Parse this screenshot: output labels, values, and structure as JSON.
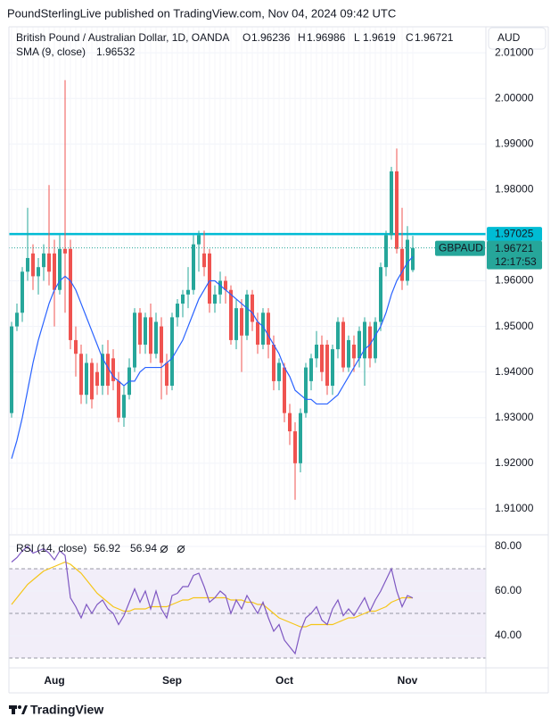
{
  "header": {
    "publisher_line": "PoundSterlingLive published on TradingView.com, Nov 04, 2024 09:42 UTC"
  },
  "footer": {
    "brand": "TradingView"
  },
  "chart_data": [
    {
      "type": "candlestick",
      "title": "British Pound / Australian Dollar, 1D, OANDA",
      "currency": "AUD",
      "symbol": "GBPAUD",
      "legend_labels": [
        "O",
        "H",
        "L",
        "C"
      ],
      "categories": [
        null,
        null,
        null,
        null,
        null,
        null,
        null,
        null,
        "Aug",
        null,
        null,
        null,
        null,
        null,
        null,
        null,
        null,
        null,
        null,
        null,
        null,
        null,
        null,
        null,
        null,
        null,
        null,
        null,
        null,
        null,
        "Sep",
        null,
        null,
        null,
        null,
        null,
        null,
        null,
        null,
        null,
        null,
        null,
        null,
        null,
        null,
        null,
        null,
        null,
        null,
        null,
        null,
        "Oct",
        null,
        null,
        null,
        null,
        null,
        null,
        null,
        null,
        null,
        null,
        null,
        null,
        null,
        null,
        null,
        null,
        null,
        null,
        null,
        null,
        null,
        null,
        "Nov",
        null
      ],
      "open": [
        1.931,
        1.95,
        1.953,
        1.962,
        1.966,
        1.961,
        1.963,
        1.966,
        1.966,
        1.958,
        1.967,
        1.967,
        1.947,
        1.944,
        1.935,
        1.942,
        1.94,
        1.937,
        1.944,
        1.943,
        1.938,
        1.93,
        1.935,
        1.941,
        1.953,
        1.946,
        1.952,
        1.944,
        1.95,
        1.942,
        1.937,
        1.952,
        1.955,
        1.957,
        1.958,
        1.968,
        1.966,
        1.966,
        1.955,
        1.957,
        1.96,
        1.958,
        1.947,
        1.954,
        1.948,
        1.957,
        1.951,
        1.946,
        1.953,
        1.946,
        1.938,
        1.941,
        1.931,
        1.927,
        1.92,
        1.931,
        1.938,
        1.943,
        1.946,
        1.946,
        1.937,
        1.945,
        1.951,
        1.941,
        1.946,
        1.943,
        1.943,
        1.95,
        1.943,
        1.951,
        1.963,
        1.97,
        1.984,
        1.967,
        1.96,
        1.96236
      ],
      "high": [
        1.951,
        1.955,
        1.963,
        1.976,
        1.968,
        1.965,
        1.968,
        1.981,
        1.969,
        1.97,
        2.004,
        1.969,
        1.95,
        1.946,
        1.944,
        1.943,
        1.942,
        1.946,
        1.947,
        1.945,
        1.94,
        1.937,
        1.943,
        1.954,
        1.954,
        1.953,
        1.955,
        1.953,
        1.952,
        1.944,
        1.953,
        1.956,
        1.958,
        1.963,
        1.97,
        1.971,
        1.971,
        1.967,
        1.959,
        1.962,
        1.961,
        1.959,
        1.956,
        1.956,
        1.958,
        1.958,
        1.953,
        1.954,
        1.954,
        1.948,
        1.943,
        1.942,
        1.933,
        1.929,
        1.932,
        1.942,
        1.944,
        1.949,
        1.948,
        1.947,
        1.946,
        1.952,
        1.952,
        1.948,
        1.948,
        1.95,
        1.952,
        1.951,
        1.952,
        1.964,
        1.971,
        1.985,
        1.989,
        1.976,
        1.972,
        1.96986
      ],
      "low": [
        1.93,
        1.949,
        1.951,
        1.96,
        1.958,
        1.957,
        1.96,
        1.959,
        1.95,
        1.957,
        1.953,
        1.945,
        1.939,
        1.933,
        1.933,
        1.932,
        1.935,
        1.935,
        1.935,
        1.936,
        1.929,
        1.928,
        1.934,
        1.94,
        1.944,
        1.944,
        1.942,
        1.943,
        1.934,
        1.935,
        1.936,
        1.95,
        1.952,
        1.954,
        1.957,
        1.962,
        1.961,
        1.953,
        1.953,
        1.955,
        1.955,
        1.946,
        1.945,
        1.94,
        1.947,
        1.949,
        1.944,
        1.945,
        1.943,
        1.936,
        1.936,
        1.929,
        1.924,
        1.912,
        1.918,
        1.93,
        1.936,
        1.941,
        1.938,
        1.935,
        1.935,
        1.943,
        1.94,
        1.94,
        1.94,
        1.941,
        1.937,
        1.941,
        1.942,
        1.949,
        1.961,
        1.969,
        1.966,
        1.958,
        1.959,
        1.9619
      ],
      "close": [
        1.95,
        1.953,
        1.962,
        1.965,
        1.961,
        1.963,
        1.966,
        1.962,
        1.958,
        1.967,
        1.966,
        1.947,
        1.944,
        1.935,
        1.942,
        1.934,
        1.937,
        1.944,
        1.937,
        1.938,
        1.93,
        1.935,
        1.941,
        1.953,
        1.946,
        1.952,
        1.944,
        1.951,
        1.942,
        1.937,
        1.952,
        1.955,
        1.957,
        1.958,
        1.968,
        1.97,
        1.963,
        1.955,
        1.957,
        1.96,
        1.958,
        1.947,
        1.954,
        1.948,
        1.957,
        1.951,
        1.946,
        1.953,
        1.946,
        1.938,
        1.942,
        1.931,
        1.927,
        1.92,
        1.931,
        1.941,
        1.943,
        1.946,
        1.94,
        1.937,
        1.945,
        1.951,
        1.941,
        1.947,
        1.943,
        1.949,
        1.951,
        1.943,
        1.951,
        1.963,
        1.97,
        1.984,
        1.967,
        1.96,
        1.969,
        1.96721
      ],
      "up_color": "#26a69a",
      "down_color": "#ef5350",
      "ylim": [
        1.9045,
        2.0157
      ],
      "yticks": [
        {
          "value": 1.91,
          "label": "1.91000"
        },
        {
          "value": 1.92,
          "label": "1.92000"
        },
        {
          "value": 1.93,
          "label": "1.93000"
        },
        {
          "value": 1.94,
          "label": "1.94000"
        },
        {
          "value": 1.95,
          "label": "1.95000"
        },
        {
          "value": 1.96,
          "label": "1.96000"
        },
        {
          "value": 1.97,
          "label": "1.97000"
        },
        {
          "value": 1.98,
          "label": "1.98000"
        },
        {
          "value": 1.99,
          "label": "1.99000"
        },
        {
          "value": 2.0,
          "label": "2.00000"
        },
        {
          "value": 2.01,
          "label": "2.01000"
        }
      ],
      "overlays": [
        {
          "name": "SMA (9, close)",
          "color": "#2962ff",
          "values": [
            1.921,
            1.925,
            1.93,
            1.936,
            1.942,
            1.947,
            1.951,
            1.955,
            1.958,
            1.96,
            1.961,
            1.96,
            1.958,
            1.955,
            1.952,
            1.949,
            1.946,
            1.943,
            1.941,
            1.939,
            1.938,
            1.937,
            1.938,
            1.938,
            1.94,
            1.941,
            1.941,
            1.941,
            1.941,
            1.942,
            1.943,
            1.945,
            1.947,
            1.95,
            1.953,
            1.956,
            1.958,
            1.96,
            1.96,
            1.959,
            1.958,
            1.957,
            1.956,
            1.955,
            1.954,
            1.953,
            1.951,
            1.95,
            1.948,
            1.946,
            1.944,
            1.941,
            1.939,
            1.936,
            1.935,
            1.934,
            1.934,
            1.933,
            1.933,
            1.933,
            1.934,
            1.935,
            1.937,
            1.939,
            1.941,
            1.943,
            1.945,
            1.946,
            1.948,
            1.95,
            1.953,
            1.957,
            1.96,
            1.962,
            1.964,
            1.96532
          ]
        }
      ],
      "hline": {
        "value": 1.97025,
        "color": "#00bcd4"
      },
      "countdown": "12:17:53"
    },
    {
      "type": "line",
      "title": "RSI (14, close)",
      "rsi": {
        "color": "#7e57c2",
        "values": [
          73,
          75,
          78,
          80,
          77,
          78,
          79,
          77,
          74,
          78,
          76,
          57,
          53,
          48,
          54,
          50,
          54,
          56,
          52,
          50,
          45,
          49,
          55,
          61,
          55,
          60,
          52,
          60,
          52,
          48,
          58,
          59,
          62,
          62,
          67,
          68,
          62,
          55,
          57,
          60,
          58,
          50,
          56,
          52,
          58,
          54,
          50,
          55,
          48,
          42,
          45,
          38,
          35,
          32,
          42,
          48,
          50,
          53,
          47,
          45,
          52,
          56,
          49,
          52,
          49,
          53,
          57,
          51,
          56,
          60,
          65,
          70,
          60,
          53,
          58,
          56.92
        ]
      },
      "rsi_ma": {
        "color": "#f5c518",
        "values": [
          54,
          57,
          60,
          63,
          65,
          67,
          69,
          70,
          71,
          72,
          73,
          72,
          70,
          68,
          65,
          62,
          59,
          57,
          55,
          53,
          52,
          51,
          51,
          52,
          52,
          52,
          53,
          53,
          53,
          53,
          54,
          55,
          56,
          56,
          57,
          57,
          57,
          57,
          57,
          57,
          57,
          56,
          56,
          56,
          55,
          55,
          54,
          54,
          52,
          50,
          48,
          47,
          46,
          45,
          44,
          44,
          45,
          45,
          45,
          45,
          45,
          46,
          47,
          48,
          48,
          49,
          50,
          51,
          51,
          52,
          53,
          55,
          56,
          57,
          57,
          56.94
        ]
      },
      "bands": [
        30,
        50,
        70
      ],
      "ylim": [
        25.6,
        84.8
      ],
      "yticks": [
        {
          "value": 40,
          "label": "40.00"
        },
        {
          "value": 60,
          "label": "60.00"
        },
        {
          "value": 80,
          "label": "80.00"
        }
      ]
    }
  ]
}
